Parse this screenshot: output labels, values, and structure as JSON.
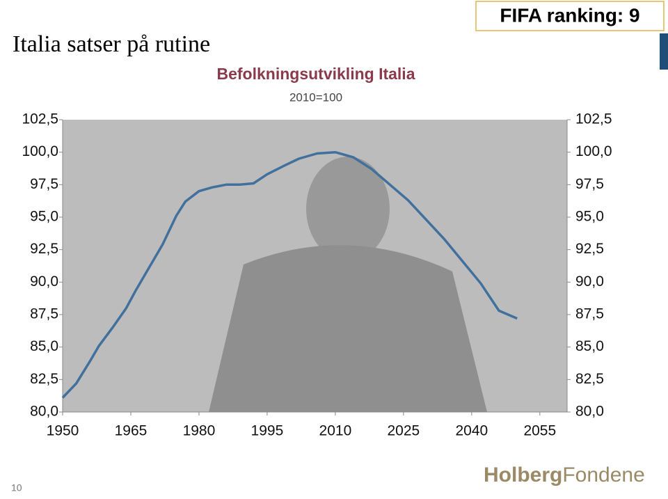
{
  "slide": {
    "title": "Italia satser på rutine",
    "badge": "FIFA ranking: 9",
    "page_number": "10",
    "logo": {
      "bold": "Holberg",
      "light": "Fondene"
    }
  },
  "chart_data": {
    "type": "line",
    "title": "Befolkningsutvikling Italia",
    "subtitle": "2010=100",
    "color": "#41709c",
    "x": [
      1950,
      1953,
      1956,
      1958,
      1961,
      1964,
      1966,
      1969,
      1972,
      1975,
      1977,
      1980,
      1983,
      1986,
      1989,
      1992,
      1995,
      1999,
      2002,
      2006,
      2010,
      2014,
      2018,
      2022,
      2026,
      2030,
      2034,
      2038,
      2042,
      2046,
      2050
    ],
    "values": [
      81.1,
      82.2,
      83.9,
      85.1,
      86.5,
      88.0,
      89.3,
      91.1,
      92.9,
      95.1,
      96.2,
      97.0,
      97.3,
      97.5,
      97.5,
      97.6,
      98.3,
      99.0,
      99.5,
      99.9,
      100.0,
      99.6,
      98.7,
      97.5,
      96.3,
      94.8,
      93.3,
      91.6,
      89.9,
      87.8,
      87.2
    ],
    "xlim": [
      1950,
      2061
    ],
    "xticks": [
      1950,
      1965,
      1980,
      1995,
      2010,
      2025,
      2040,
      2055
    ],
    "ylim": [
      80,
      102.5
    ],
    "yticks": [
      {
        "value": 80,
        "label": "80,0"
      },
      {
        "value": 82.5,
        "label": "82,5"
      },
      {
        "value": 85,
        "label": "85,0"
      },
      {
        "value": 87.5,
        "label": "87,5"
      },
      {
        "value": 90,
        "label": "90,0"
      },
      {
        "value": 92.5,
        "label": "92,5"
      },
      {
        "value": 95,
        "label": "95,0"
      },
      {
        "value": 97.5,
        "label": "97,5"
      },
      {
        "value": 100,
        "label": "100,0"
      },
      {
        "value": 102.5,
        "label": "102,5"
      }
    ],
    "y2lim": [
      80,
      102.5
    ],
    "y2ticks": [
      {
        "value": 80,
        "label": "80,0"
      },
      {
        "value": 82.5,
        "label": "82,5"
      },
      {
        "value": 85,
        "label": "85,0"
      },
      {
        "value": 87.5,
        "label": "87,5"
      },
      {
        "value": 90,
        "label": "90,0"
      },
      {
        "value": 92.5,
        "label": "92,5"
      },
      {
        "value": 95,
        "label": "95,0"
      },
      {
        "value": 97.5,
        "label": "97,5"
      },
      {
        "value": 100,
        "label": "100,0"
      },
      {
        "value": 102.5,
        "label": "102,5"
      }
    ]
  }
}
